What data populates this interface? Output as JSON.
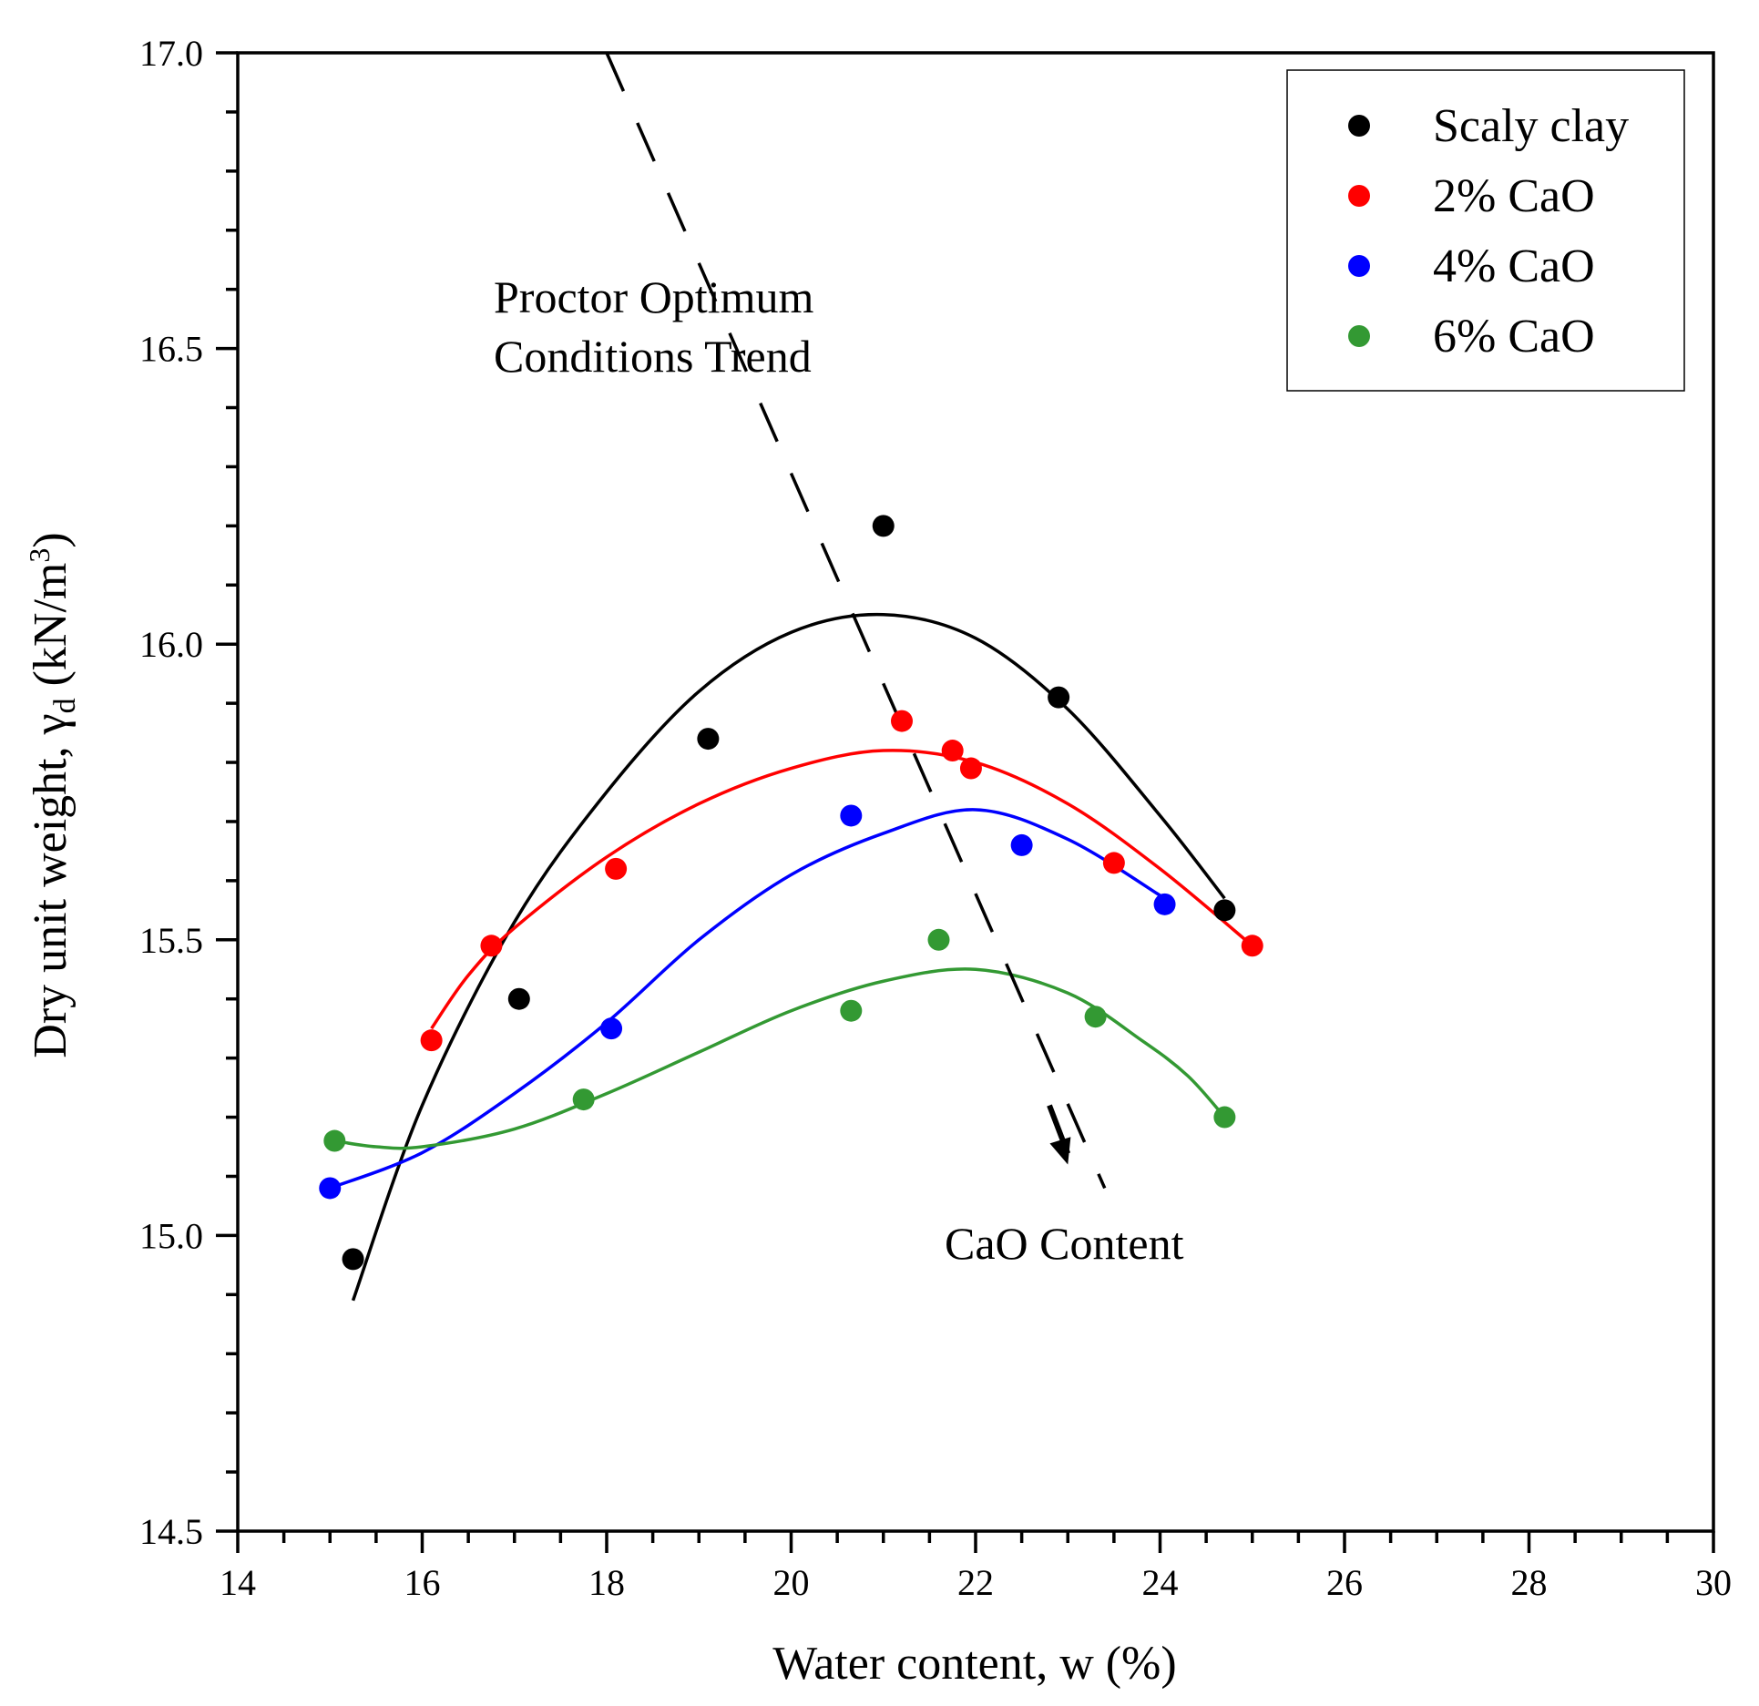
{
  "chart_data": {
    "type": "scatter",
    "title": "",
    "xlabel": "Water content, w (%)",
    "ylabel_main": "Dry unit weight, γ",
    "ylabel_sub": "d",
    "ylabel_unit": " (kN/m",
    "ylabel_sup": "3",
    "ylabel_close": ")",
    "xlim": [
      14,
      30
    ],
    "ylim": [
      14.5,
      17.0
    ],
    "x_ticks": [
      14,
      16,
      18,
      20,
      22,
      24,
      26,
      28,
      30
    ],
    "x_tick_labels": [
      "14",
      "16",
      "18",
      "20",
      "22",
      "24",
      "26",
      "28",
      "30"
    ],
    "y_ticks": [
      14.5,
      15.0,
      15.5,
      16.0,
      16.5,
      17.0
    ],
    "y_tick_labels": [
      "14.5",
      "15.0",
      "15.5",
      "16.0",
      "16.5",
      "17.0"
    ],
    "legend_position": "top-right",
    "series": [
      {
        "name": "Scaly clay",
        "color": "#000000",
        "points": [
          [
            15.25,
            14.96
          ],
          [
            17.05,
            15.4
          ],
          [
            19.1,
            15.84
          ],
          [
            21.0,
            16.2
          ],
          [
            22.9,
            15.91
          ],
          [
            24.7,
            15.55
          ]
        ],
        "fit": [
          [
            15.25,
            14.89
          ],
          [
            16.0,
            15.22
          ],
          [
            17.0,
            15.53
          ],
          [
            18.0,
            15.75
          ],
          [
            19.0,
            15.92
          ],
          [
            20.0,
            16.02
          ],
          [
            21.0,
            16.05
          ],
          [
            22.0,
            16.01
          ],
          [
            23.0,
            15.89
          ],
          [
            24.0,
            15.71
          ],
          [
            24.7,
            15.57
          ]
        ]
      },
      {
        "name": "2% CaO",
        "color": "#ff0000",
        "points": [
          [
            16.1,
            15.33
          ],
          [
            16.75,
            15.49
          ],
          [
            18.1,
            15.62
          ],
          [
            21.2,
            15.87
          ],
          [
            21.75,
            15.82
          ],
          [
            21.95,
            15.79
          ],
          [
            23.5,
            15.63
          ],
          [
            25.0,
            15.49
          ]
        ],
        "fit": [
          [
            16.1,
            15.35
          ],
          [
            16.5,
            15.44
          ],
          [
            17.0,
            15.52
          ],
          [
            18.0,
            15.64
          ],
          [
            19.0,
            15.73
          ],
          [
            20.0,
            15.79
          ],
          [
            21.0,
            15.82
          ],
          [
            22.0,
            15.8
          ],
          [
            23.0,
            15.73
          ],
          [
            24.0,
            15.62
          ],
          [
            25.0,
            15.49
          ]
        ]
      },
      {
        "name": "4% CaO",
        "color": "#0000ff",
        "points": [
          [
            15.0,
            15.08
          ],
          [
            18.05,
            15.35
          ],
          [
            20.65,
            15.71
          ],
          [
            22.5,
            15.66
          ],
          [
            24.05,
            15.56
          ]
        ],
        "fit": [
          [
            15.0,
            15.08
          ],
          [
            16.0,
            15.14
          ],
          [
            17.0,
            15.24
          ],
          [
            18.0,
            15.36
          ],
          [
            19.0,
            15.5
          ],
          [
            20.0,
            15.61
          ],
          [
            21.0,
            15.68
          ],
          [
            22.0,
            15.72
          ],
          [
            23.0,
            15.67
          ],
          [
            24.05,
            15.57
          ]
        ]
      },
      {
        "name": "6% CaO",
        "color": "#339933",
        "points": [
          [
            15.05,
            15.16
          ],
          [
            17.75,
            15.23
          ],
          [
            20.65,
            15.38
          ],
          [
            21.6,
            15.5
          ],
          [
            23.3,
            15.37
          ],
          [
            24.7,
            15.2
          ]
        ],
        "fit": [
          [
            15.05,
            15.16
          ],
          [
            15.5,
            15.15
          ],
          [
            16.0,
            15.15
          ],
          [
            17.0,
            15.18
          ],
          [
            18.0,
            15.24
          ],
          [
            19.0,
            15.31
          ],
          [
            20.0,
            15.38
          ],
          [
            21.0,
            15.43
          ],
          [
            22.0,
            15.45
          ],
          [
            23.0,
            15.41
          ],
          [
            23.8,
            15.33
          ],
          [
            24.3,
            15.27
          ],
          [
            24.7,
            15.2
          ]
        ]
      }
    ],
    "trend_line": {
      "label_line1": "Proctor Optimum",
      "label_line2": "Conditions Trend",
      "from": [
        18.0,
        17.0
      ],
      "to": [
        23.4,
        15.08
      ]
    },
    "arrow": {
      "label": "CaO Content",
      "from": [
        22.8,
        15.22
      ],
      "to": [
        23.0,
        15.12
      ]
    }
  }
}
